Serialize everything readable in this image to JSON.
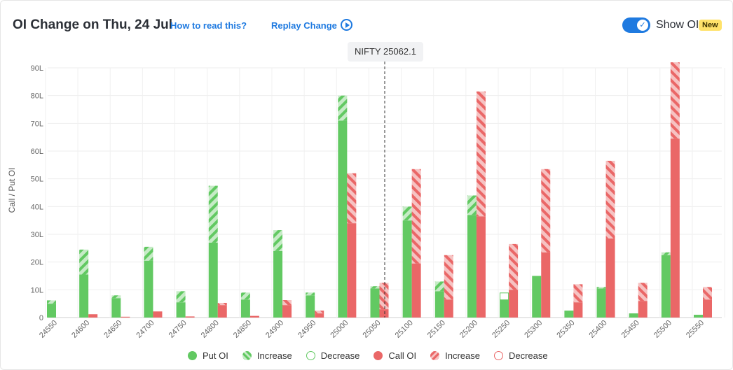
{
  "header": {
    "title": "OI Change on Thu, 24 Jul",
    "how_to_read": "How to read this?",
    "replay": "Replay Change",
    "show_oi": "Show OI",
    "new_badge": "New"
  },
  "spot_tag": "NIFTY 25062.1",
  "colors": {
    "put": "#62c962",
    "put_light": "#c6ebc6",
    "call": "#ea6767",
    "call_light": "#f6c2c2",
    "accent": "#1f7ae0"
  },
  "legend": {
    "put_oi": "Put OI",
    "put_increase": "Increase",
    "put_decrease": "Decrease",
    "call_oi": "Call OI",
    "call_increase": "Increase",
    "call_decrease": "Decrease"
  },
  "chart_data": {
    "type": "bar",
    "ylabel": "Call / Put OI",
    "ylim": [
      0,
      90
    ],
    "y_ticks": [
      "0",
      "10L",
      "20L",
      "30L",
      "40L",
      "50L",
      "60L",
      "70L",
      "80L",
      "90L"
    ],
    "grid": true,
    "spot_value": 25062.1,
    "categories": [
      "24550",
      "24600",
      "24650",
      "24700",
      "24750",
      "24800",
      "24850",
      "24900",
      "24950",
      "25000",
      "25050",
      "25100",
      "25150",
      "25200",
      "25250",
      "25300",
      "25350",
      "25400",
      "25450",
      "25500",
      "25550"
    ],
    "series": [
      {
        "name": "Put OI",
        "values": [
          5,
          15.5,
          7,
          20.5,
          5.5,
          27,
          6.5,
          24,
          8,
          71,
          10.5,
          35,
          9.5,
          37,
          6.5,
          15,
          2.5,
          10.5,
          1.5,
          22.5,
          1
        ]
      },
      {
        "name": "Increase",
        "values": [
          1.2,
          9,
          1,
          5,
          4,
          20.5,
          2.5,
          7.5,
          1,
          9,
          0.8,
          5,
          3.5,
          7,
          0,
          0,
          0,
          0.5,
          0,
          1,
          0
        ]
      },
      {
        "name": "Decrease",
        "values": [
          0,
          0,
          0,
          0,
          0,
          0,
          0,
          0,
          0,
          0,
          0,
          0,
          0,
          0,
          2.5,
          0,
          0,
          0,
          0,
          0,
          0
        ]
      },
      {
        "name": "Call OI",
        "values": [
          0,
          1.2,
          0.3,
          2.2,
          0.4,
          4.5,
          0.6,
          4.5,
          1.5,
          34,
          3,
          19.5,
          6.5,
          36.5,
          10,
          23.5,
          5.5,
          28.5,
          6,
          64.5,
          6.5
        ]
      },
      {
        "name": "Increase",
        "values": [
          0,
          0,
          0,
          0,
          0,
          0.8,
          0,
          1.8,
          1,
          18,
          9.5,
          34,
          16,
          45,
          16.5,
          30,
          6.5,
          28,
          6.5,
          27.5,
          4.5
        ]
      },
      {
        "name": "Decrease",
        "values": [
          0,
          0,
          0,
          0,
          0,
          0,
          0,
          0,
          0,
          0,
          0,
          0,
          0,
          0,
          0,
          0,
          0,
          0,
          0,
          0,
          0
        ]
      }
    ]
  }
}
